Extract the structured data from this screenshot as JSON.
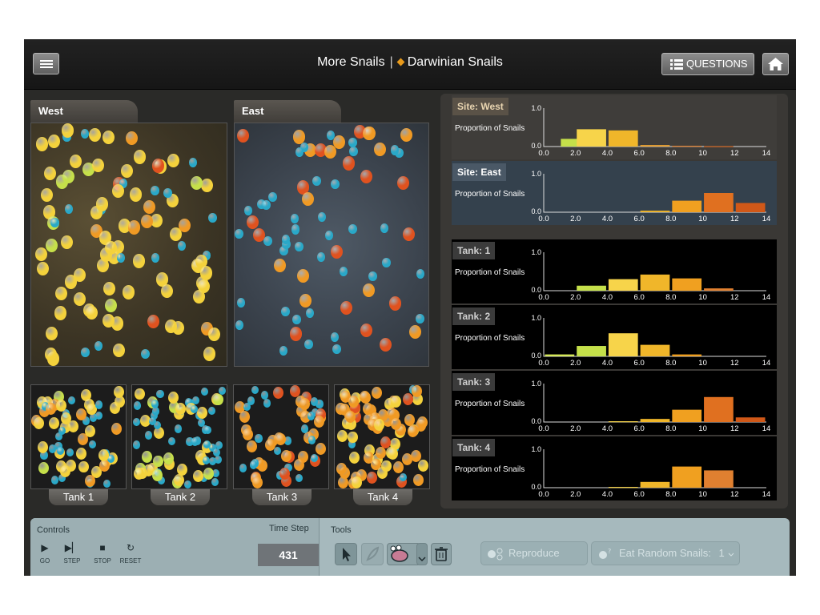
{
  "header": {
    "title_prefix": "More Snails",
    "separator": "|",
    "title_main": "Darwinian Snails",
    "questions_label": "QUESTIONS"
  },
  "environments": {
    "west": {
      "label": "West"
    },
    "east": {
      "label": "East"
    },
    "tanks": [
      {
        "label": "Tank 1"
      },
      {
        "label": "Tank 2"
      },
      {
        "label": "Tank 3"
      },
      {
        "label": "Tank 4"
      }
    ]
  },
  "graphs": {
    "ylabel": "Proportion of Snails",
    "ytick_top": "1.0",
    "ytick_bottom": "0.0",
    "xticks": [
      "0.0",
      "2.0",
      "4.0",
      "6.0",
      "8.0",
      "10",
      "12",
      "14"
    ]
  },
  "chart_data": [
    {
      "type": "bar",
      "title": "Site: West",
      "ylabel": "Proportion of Snails",
      "xlim": [
        0,
        14
      ],
      "ylim": [
        0,
        1
      ],
      "x": [
        2,
        3,
        5,
        7,
        9,
        11
      ],
      "values": [
        0.2,
        0.45,
        0.42,
        0.04,
        0.02,
        0.01
      ],
      "colors": [
        "#c5e04a",
        "#f7d44a",
        "#f0b62a",
        "#e8a032",
        "#e08030",
        "#d86a28"
      ]
    },
    {
      "type": "bar",
      "title": "Site: East",
      "ylabel": "Proportion of Snails",
      "xlim": [
        0,
        14
      ],
      "ylim": [
        0,
        1
      ],
      "x": [
        7,
        9,
        11,
        13
      ],
      "values": [
        0.04,
        0.3,
        0.5,
        0.24
      ],
      "colors": [
        "#f0b62a",
        "#f0a020",
        "#e07020",
        "#d05818"
      ]
    },
    {
      "type": "bar",
      "title": "Tank: 1",
      "ylabel": "Proportion of Snails",
      "xlim": [
        0,
        14
      ],
      "ylim": [
        0,
        1
      ],
      "x": [
        3,
        5,
        7,
        9,
        11
      ],
      "values": [
        0.13,
        0.3,
        0.42,
        0.32,
        0.06
      ],
      "colors": [
        "#c5e04a",
        "#f7d44a",
        "#f0b62a",
        "#f0a020",
        "#e08030"
      ]
    },
    {
      "type": "bar",
      "title": "Tank: 2",
      "ylabel": "Proportion of Snails",
      "xlim": [
        0,
        14
      ],
      "ylim": [
        0,
        1
      ],
      "x": [
        1,
        3,
        5,
        7,
        9
      ],
      "values": [
        0.05,
        0.27,
        0.6,
        0.3,
        0.05
      ],
      "colors": [
        "#d7ea5a",
        "#c5e04a",
        "#f7d44a",
        "#f0b62a",
        "#f0a020"
      ]
    },
    {
      "type": "bar",
      "title": "Tank: 3",
      "ylabel": "Proportion of Snails",
      "xlim": [
        0,
        14
      ],
      "ylim": [
        0,
        1
      ],
      "x": [
        5,
        7,
        9,
        11,
        13
      ],
      "values": [
        0.02,
        0.08,
        0.32,
        0.65,
        0.12
      ],
      "colors": [
        "#f7d44a",
        "#f0b62a",
        "#f0a020",
        "#e07020",
        "#d05818"
      ]
    },
    {
      "type": "bar",
      "title": "Tank: 4",
      "ylabel": "Proportion of Snails",
      "xlim": [
        0,
        14
      ],
      "ylim": [
        0,
        1
      ],
      "x": [
        5,
        7,
        9,
        11
      ],
      "values": [
        0.02,
        0.15,
        0.55,
        0.45
      ],
      "colors": [
        "#f7d44a",
        "#f0b62a",
        "#f0a020",
        "#e08030"
      ]
    }
  ],
  "controls": {
    "title": "Controls",
    "timestep_label": "Time Step",
    "timestep_value": "431",
    "buttons": [
      {
        "label": "GO",
        "icon": "play-icon"
      },
      {
        "label": "STEP",
        "icon": "step-icon"
      },
      {
        "label": "STOP",
        "icon": "stop-icon"
      },
      {
        "label": "RESET",
        "icon": "reset-icon"
      }
    ]
  },
  "tools": {
    "title": "Tools",
    "reproduce_label": "Reproduce",
    "eat_label": "Eat Random Snails:",
    "eat_value": "1"
  },
  "colors": {
    "yellow": "#f4d23c",
    "orange": "#f09a24",
    "red": "#e0521f",
    "green": "#c6e04a",
    "teal": "#29a8c8"
  }
}
